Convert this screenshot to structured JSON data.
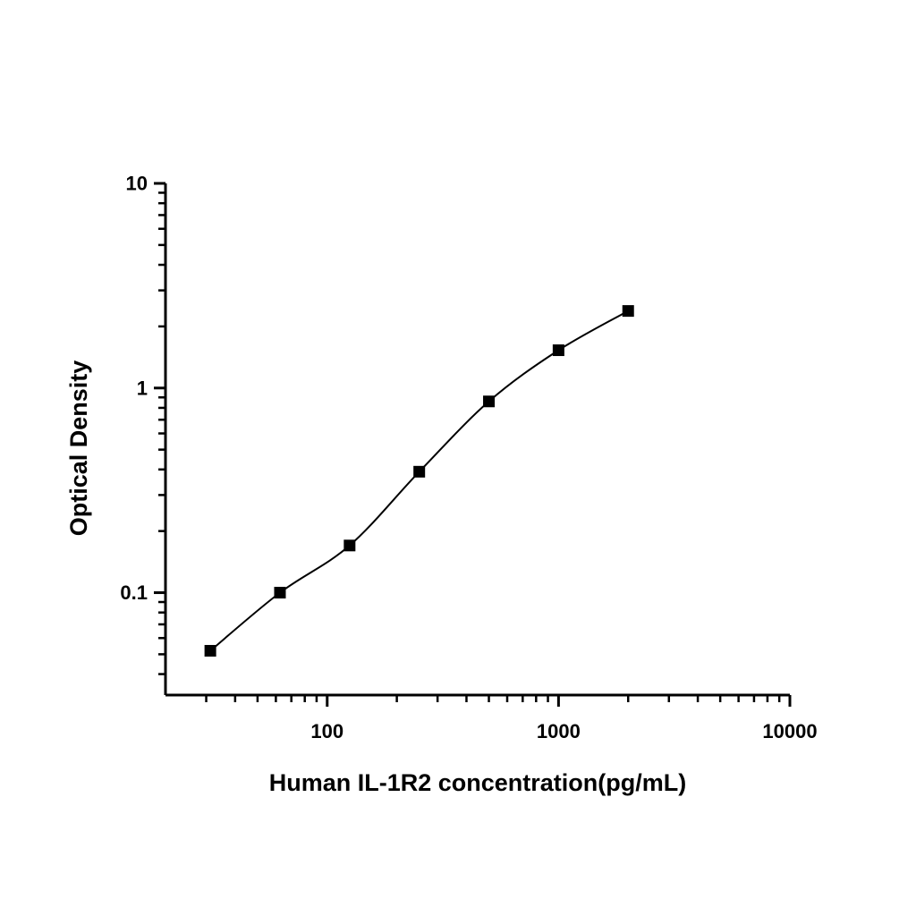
{
  "figure": {
    "background": "#ffffff",
    "foreground": "#000000"
  },
  "chart_data": {
    "type": "scatter",
    "title": "",
    "xlabel": "Human IL-1R2 concentration(pg/mL)",
    "ylabel": "Optical Density",
    "x_scale": "log",
    "y_scale": "log",
    "xlim": [
      20,
      10000
    ],
    "ylim": [
      0.0316,
      10
    ],
    "grid": false,
    "legend": "none",
    "curve": "smooth-fit-line",
    "x_ticks": [
      {
        "value": 100,
        "label": "100"
      },
      {
        "value": 1000,
        "label": "1000"
      },
      {
        "value": 10000,
        "label": "10000"
      }
    ],
    "y_ticks": [
      {
        "value": 10,
        "label": "10"
      },
      {
        "value": 1,
        "label": "1"
      },
      {
        "value": 0.1,
        "label": "0.1"
      }
    ],
    "series": [
      {
        "name": "standard-curve",
        "marker": "filled-square",
        "color": "#000000",
        "x": [
          31.25,
          62.5,
          125,
          250,
          500,
          1000,
          2000
        ],
        "y": [
          0.052,
          0.1,
          0.17,
          0.39,
          0.86,
          1.53,
          2.38
        ]
      }
    ]
  }
}
